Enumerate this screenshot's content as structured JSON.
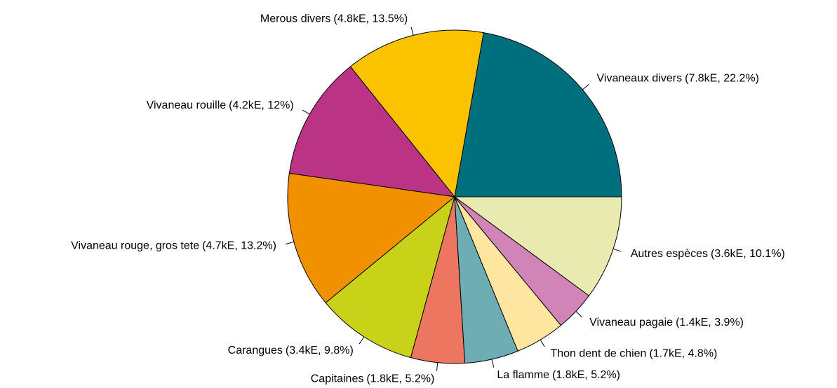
{
  "chart_data": {
    "type": "pie",
    "categories": [
      "Vivaneaux divers",
      "Merous divers",
      "Vivaneau rouille",
      "Vivaneau rouge, gros tete",
      "Carangues",
      "Capitaines",
      "La flamme",
      "Thon dent de chien",
      "Vivaneau pagaie",
      "Autres espèces"
    ],
    "values": [
      22.2,
      13.5,
      12,
      13.2,
      9.8,
      5.2,
      5.2,
      4.8,
      3.9,
      10.1
    ],
    "value_labels": [
      "(7.8kE, 22.2%)",
      "(4.8kE, 13.5%)",
      "(4.2kE, 12%)",
      "(4.7kE, 13.2%)",
      "(3.4kE, 9.8%)",
      "(1.8kE, 5.2%)",
      "(1.8kE, 5.2%)",
      "(1.7kE, 4.8%)",
      "(1.4kE, 3.9%)",
      "(3.6kE, 10.1%)"
    ],
    "colors": [
      "#00707f",
      "#fbc200",
      "#bb3385",
      "#f29100",
      "#c8d218",
      "#ec7660",
      "#6fadb5",
      "#fee6a0",
      "#d084b8",
      "#e8eab0"
    ]
  }
}
